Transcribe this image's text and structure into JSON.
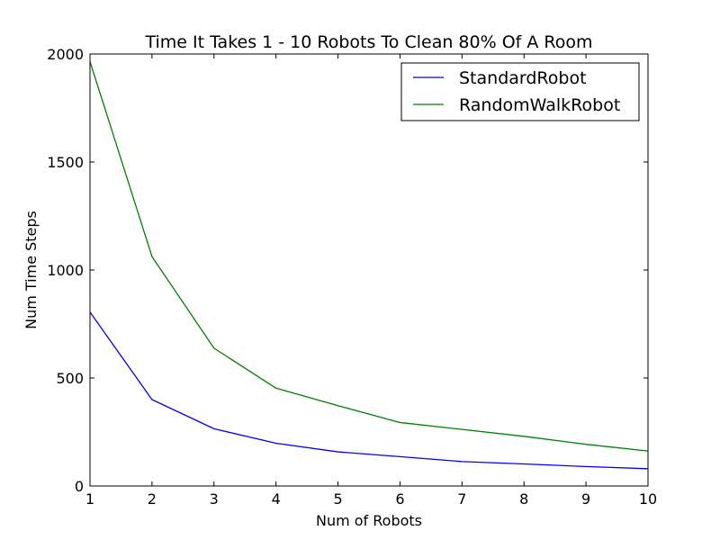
{
  "chart_data": {
    "type": "line",
    "title": "Time It Takes 1 - 10 Robots To Clean 80% Of A Room",
    "xlabel": "Num of Robots",
    "ylabel": "Num Time Steps",
    "x": [
      1,
      2,
      3,
      4,
      5,
      6,
      7,
      8,
      9,
      10
    ],
    "xlim": [
      1,
      10
    ],
    "ylim": [
      0,
      2000
    ],
    "xticks": [
      1,
      2,
      3,
      4,
      5,
      6,
      7,
      8,
      9,
      10
    ],
    "yticks": [
      0,
      500,
      1000,
      1500,
      2000
    ],
    "grid": false,
    "legend_position": "top-right",
    "series": [
      {
        "name": "StandardRobot",
        "color": "#0000ff",
        "values": [
          805,
          400,
          265,
          198,
          158,
          136,
          113,
          102,
          90,
          80
        ]
      },
      {
        "name": "RandomWalkRobot",
        "color": "#008000",
        "values": [
          1965,
          1062,
          638,
          453,
          372,
          294,
          262,
          230,
          193,
          162
        ]
      }
    ]
  }
}
